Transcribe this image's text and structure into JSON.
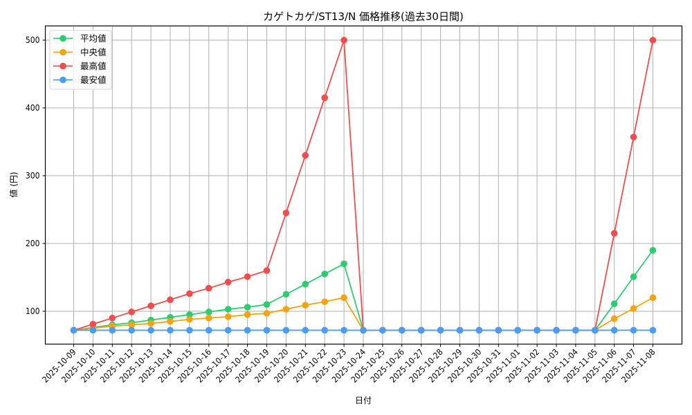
{
  "chart_data": {
    "type": "line",
    "title": "カゲトカゲ/ST13/N 価格推移(過去30日間)",
    "xlabel": "日付",
    "ylabel": "値 (円)",
    "ylim": [
      50,
      522
    ],
    "yticks": [
      100,
      200,
      300,
      400,
      500
    ],
    "grid": true,
    "legend_position": "upper left",
    "categories": [
      "2025-10-09",
      "2025-10-10",
      "2025-10-11",
      "2025-10-12",
      "2025-10-13",
      "2025-10-14",
      "2025-10-15",
      "2025-10-16",
      "2025-10-17",
      "2025-10-18",
      "2025-10-19",
      "2025-10-20",
      "2025-10-21",
      "2025-10-22",
      "2025-10-23",
      "2025-10-24",
      "2025-10-25",
      "2025-10-26",
      "2025-10-27",
      "2025-10-28",
      "2025-10-29",
      "2025-10-30",
      "2025-10-31",
      "2025-11-01",
      "2025-11-02",
      "2025-11-03",
      "2025-11-04",
      "2025-11-05",
      "2025-11-06",
      "2025-11-07",
      "2025-11-08"
    ],
    "series": [
      {
        "name": "平均値",
        "color": "#2ecc71",
        "values": [
          72,
          76,
          80,
          83,
          87,
          91,
          95,
          99,
          103,
          106,
          110,
          125,
          140,
          155,
          170,
          72,
          72,
          72,
          72,
          72,
          72,
          72,
          72,
          72,
          72,
          72,
          72,
          72,
          111,
          151,
          190
        ]
      },
      {
        "name": "中央値",
        "color": "#f5a30f",
        "values": [
          72,
          75,
          78,
          80,
          82,
          85,
          88,
          90,
          92,
          95,
          97,
          103,
          109,
          114,
          120,
          72,
          72,
          72,
          72,
          72,
          72,
          72,
          72,
          72,
          72,
          72,
          72,
          72,
          89,
          104,
          120
        ]
      },
      {
        "name": "最高値",
        "color": "#f24c4c",
        "values": [
          72,
          81,
          90,
          99,
          108,
          117,
          126,
          134,
          143,
          151,
          160,
          245,
          330,
          415,
          500,
          72,
          72,
          72,
          72,
          72,
          72,
          72,
          72,
          72,
          72,
          72,
          72,
          72,
          215,
          357,
          500
        ]
      },
      {
        "name": "最安値",
        "color": "#4b9cf5",
        "values": [
          72,
          72,
          72,
          72,
          72,
          72,
          72,
          72,
          72,
          72,
          72,
          72,
          72,
          72,
          72,
          72,
          72,
          72,
          72,
          72,
          72,
          72,
          72,
          72,
          72,
          72,
          72,
          72,
          72,
          72,
          72
        ]
      }
    ]
  }
}
